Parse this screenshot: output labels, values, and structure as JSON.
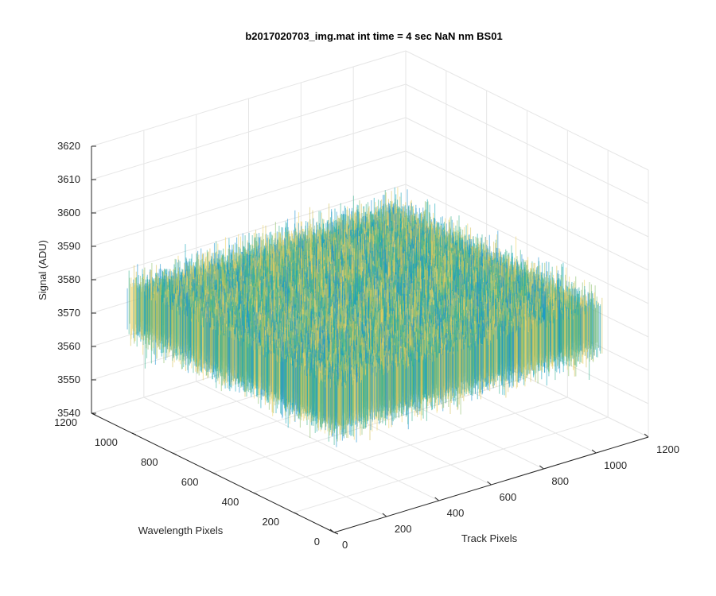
{
  "chart_data": {
    "type": "surface",
    "title": "b2017020703_img.mat int time = 4 sec  NaN nm BS01",
    "xlabel": "Track Pixels",
    "ylabel": "Wavelength Pixels",
    "zlabel": "Signal (ADU)",
    "xlim": [
      0,
      1200
    ],
    "ylim": [
      0,
      1200
    ],
    "zlim": [
      3540,
      3620
    ],
    "x_ticks": [
      "0",
      "200",
      "400",
      "600",
      "800",
      "1000",
      "1200"
    ],
    "y_ticks": [
      "0",
      "200",
      "400",
      "600",
      "800",
      "1000",
      "1200"
    ],
    "z_ticks": [
      "3540",
      "3550",
      "3560",
      "3570",
      "3580",
      "3590",
      "3600",
      "3610",
      "3620"
    ],
    "surface_extent": {
      "x": [
        1,
        1024
      ],
      "y": [
        1,
        1024
      ]
    },
    "signal_mean": 3578,
    "signal_range": [
      3545,
      3610
    ],
    "grid": true,
    "colormap": [
      "#1f93cf",
      "#17a7b8",
      "#3bb48f",
      "#8cc06a",
      "#d6c35a",
      "#f0d66a"
    ]
  }
}
